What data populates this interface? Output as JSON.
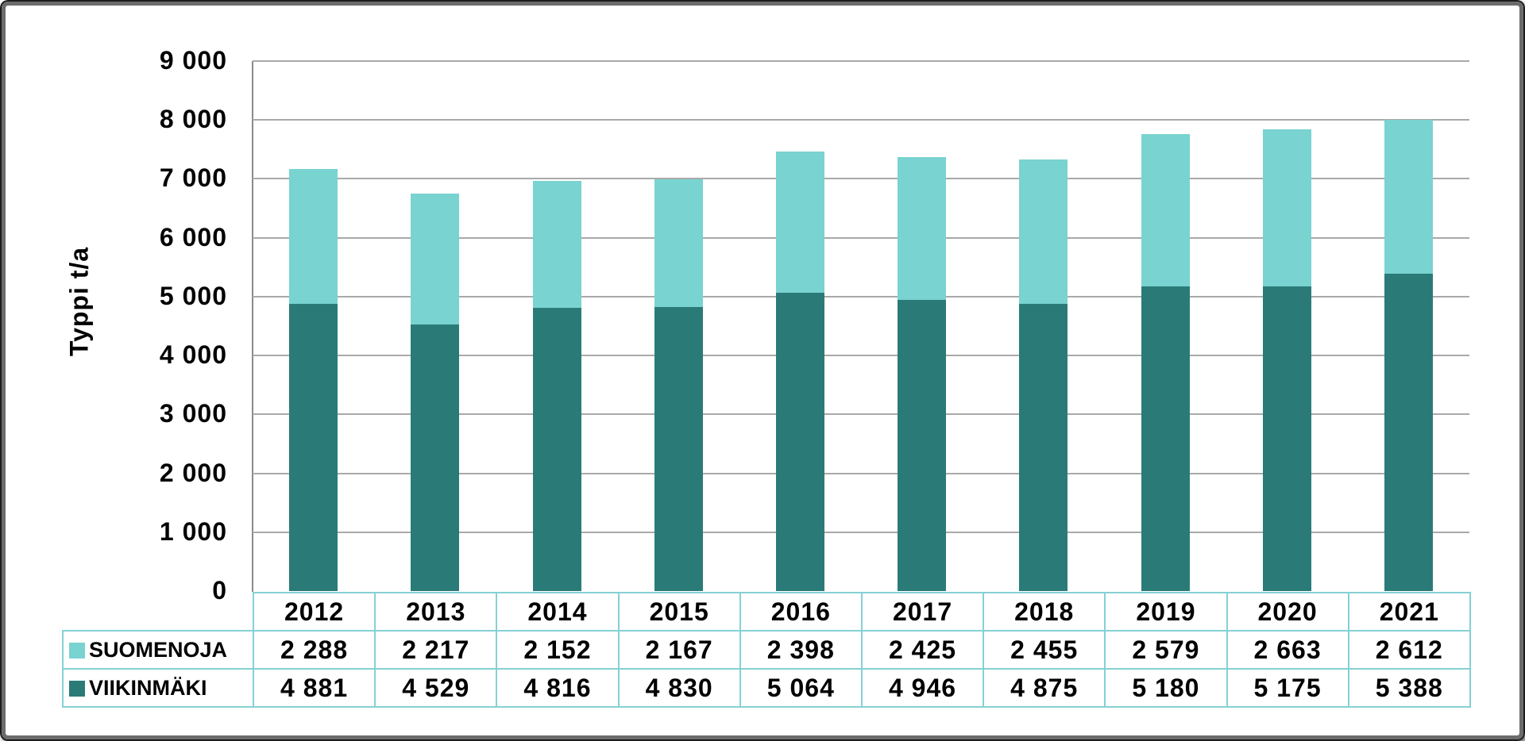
{
  "chart_data": {
    "type": "bar",
    "stacked": true,
    "title": "",
    "ylabel": "Typpi t/a",
    "xlabel": "",
    "categories": [
      "2012",
      "2013",
      "2014",
      "2015",
      "2016",
      "2017",
      "2018",
      "2019",
      "2020",
      "2021"
    ],
    "series": [
      {
        "name": "SUOMENOJA",
        "color": "#79D3D0",
        "values": [
          2288,
          2217,
          2152,
          2167,
          2398,
          2425,
          2455,
          2579,
          2663,
          2612
        ],
        "values_display": [
          "2 288",
          "2 217",
          "2 152",
          "2 167",
          "2 398",
          "2 425",
          "2 455",
          "2 579",
          "2 663",
          "2 612"
        ]
      },
      {
        "name": "VIIKINMÄKI",
        "color": "#2A7B78",
        "values": [
          4881,
          4529,
          4816,
          4830,
          5064,
          4946,
          4875,
          5180,
          5175,
          5388
        ],
        "values_display": [
          "4 881",
          "4 529",
          "4 816",
          "4 830",
          "5 064",
          "4 946",
          "4 875",
          "5 180",
          "5 175",
          "5 388"
        ]
      }
    ],
    "stack_order_bottom_to_top": [
      "VIIKINMÄKI",
      "SUOMENOJA"
    ],
    "ylim": [
      0,
      9000
    ],
    "ytick_interval": 1000,
    "ytick_labels_top_to_bottom": [
      "9 000",
      "8 000",
      "7 000",
      "6 000",
      "5 000",
      "4 000",
      "3 000",
      "2 000",
      "1 000",
      "0"
    ],
    "grid": true,
    "legend_position": "data-table-left",
    "colors": {
      "gridline": "#A9A9A9",
      "axis_line": "#8A8A8A",
      "table_border": "#85D1D5",
      "text": "#000000",
      "frame_border": "#6C6C6C"
    }
  }
}
